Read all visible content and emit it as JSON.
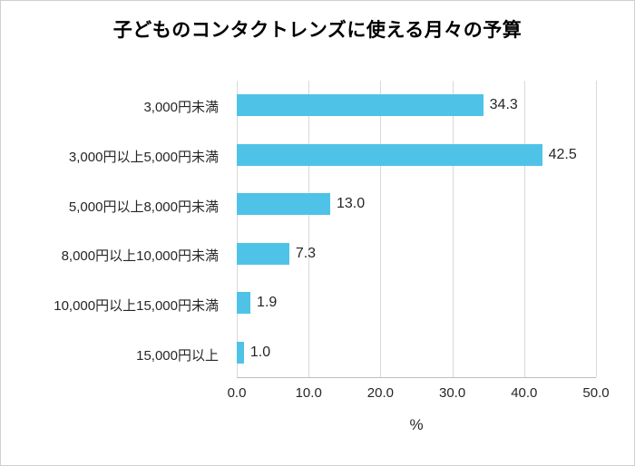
{
  "title": "子どものコンタクトレンズに使える月々の予算",
  "chart_data": {
    "type": "bar",
    "orientation": "horizontal",
    "title": "子どものコンタクトレンズに使える月々の予算",
    "categories": [
      "3,000円未満",
      "3,000円以上5,000円未満",
      "5,000円以上8,000円未満",
      "8,000円以上10,000円未満",
      "10,000円以上15,000円未満",
      "15,000円以上"
    ],
    "values": [
      34.3,
      42.5,
      13.0,
      7.3,
      1.9,
      1.0
    ],
    "value_labels": [
      "34.3",
      "42.5",
      "13.0",
      "7.3",
      "1.9",
      "1.0"
    ],
    "xlabel": "%",
    "ylabel": "",
    "xlim": [
      0,
      50
    ],
    "xticks": [
      0,
      10,
      20,
      30,
      40,
      50
    ],
    "xtick_labels": [
      "0.0",
      "10.0",
      "20.0",
      "30.0",
      "40.0",
      "50.0"
    ],
    "bar_color": "#4fc3e7",
    "gridline_color": "#d9d9d9",
    "grid": true,
    "legend": false
  }
}
